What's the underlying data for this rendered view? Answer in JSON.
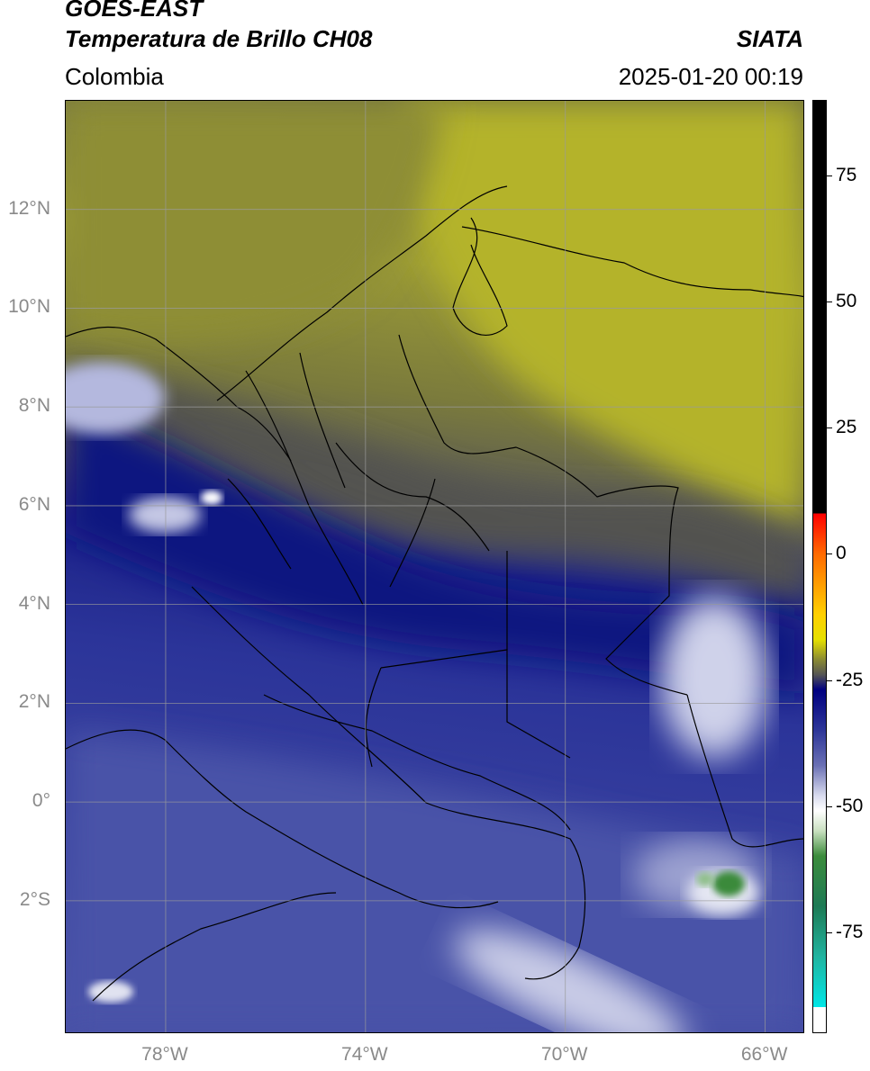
{
  "header": {
    "satellite": "GOES-EAST",
    "product": "Temperatura de Brillo CH08",
    "region": "Colombia",
    "organization": "SIATA",
    "timestamp": "2025-01-20 00:19"
  },
  "map": {
    "lon_range": [
      -80,
      -65.2
    ],
    "lat_range": [
      -4.7,
      14.2
    ],
    "lat_ticks": [
      {
        "value": 12,
        "label": "12°N"
      },
      {
        "value": 10,
        "label": "10°N"
      },
      {
        "value": 8,
        "label": "8°N"
      },
      {
        "value": 6,
        "label": "6°N"
      },
      {
        "value": 4,
        "label": "4°N"
      },
      {
        "value": 2,
        "label": "2°N"
      },
      {
        "value": 0,
        "label": "0°"
      },
      {
        "value": -2,
        "label": "2°S"
      }
    ],
    "lon_ticks": [
      {
        "value": -78,
        "label": "78°W"
      },
      {
        "value": -74,
        "label": "74°W"
      },
      {
        "value": -70,
        "label": "70°W"
      },
      {
        "value": -66,
        "label": "66°W"
      }
    ],
    "gridlines": true,
    "gridline_color": "#9a9a9a",
    "colors": {
      "warm_yellow": "#b7b52a",
      "olive": "#8a8a33",
      "gray": "#5c5c55",
      "deep_blue": "#0d1580",
      "mid_blue": "#2a3399",
      "lavender": "#5e66b0",
      "white_cloud": "#e6e8f3",
      "green_core": "#3a8a3a"
    }
  },
  "colorbar": {
    "range": [
      -95,
      90
    ],
    "ticks": [
      {
        "value": 75,
        "label": "75"
      },
      {
        "value": 50,
        "label": "50"
      },
      {
        "value": 25,
        "label": "25"
      },
      {
        "value": 0,
        "label": "0"
      },
      {
        "value": -25,
        "label": "-25"
      },
      {
        "value": -50,
        "label": "-50"
      },
      {
        "value": -75,
        "label": "-75"
      }
    ]
  }
}
